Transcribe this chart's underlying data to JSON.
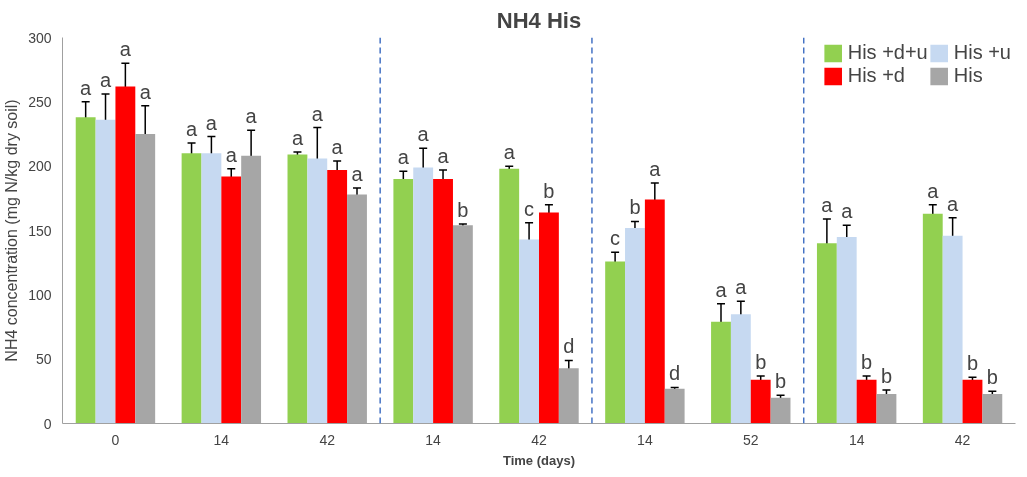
{
  "chart_data": {
    "type": "bar",
    "title": "NH4 His",
    "xlabel": "Time (days)",
    "ylabel": "NH4 concentration (mg N/kg dry soil)",
    "categories": [
      "0",
      "14",
      "42",
      "14",
      "42",
      "14",
      "52",
      "14",
      "42"
    ],
    "series": [
      {
        "name": "His +d+u",
        "color": "#92d050",
        "values": [
          238,
          210,
          209,
          190,
          198,
          126,
          79,
          140,
          163
        ],
        "errors": [
          12,
          8,
          2,
          6,
          2,
          7,
          14,
          19,
          7
        ],
        "value_labels": [
          "a",
          "a",
          "a",
          "a",
          "a",
          "c",
          "a",
          "a",
          "a"
        ]
      },
      {
        "name": "His +u",
        "color": "#c6d9f1",
        "values": [
          236,
          210,
          206,
          199,
          143,
          152,
          85,
          145,
          146
        ],
        "errors": [
          20,
          13,
          24,
          15,
          13,
          5,
          10,
          9,
          14
        ],
        "value_labels": [
          "a",
          "a",
          "a",
          "a",
          "c",
          "b",
          "a",
          "a",
          "a"
        ]
      },
      {
        "name": "His +d",
        "color": "#ff0000",
        "values": [
          262,
          192,
          197,
          190,
          164,
          174,
          34,
          34,
          34
        ],
        "errors": [
          18,
          6,
          7,
          7,
          6,
          13,
          3,
          3,
          2
        ],
        "value_labels": [
          "a",
          "a",
          "a",
          "a",
          "b",
          "a",
          "b",
          "b",
          "b"
        ]
      },
      {
        "name": "His",
        "color": "#a6a6a6",
        "values": [
          225,
          208,
          178,
          154,
          43,
          27,
          20,
          23,
          23
        ],
        "errors": [
          22,
          20,
          5,
          1,
          6,
          1,
          2,
          3,
          2
        ],
        "value_labels": [
          "a",
          "a",
          "a",
          "b",
          "d",
          "d",
          "b",
          "b",
          "b"
        ]
      }
    ],
    "ylim": [
      0,
      300
    ],
    "yticks": [
      0,
      50,
      100,
      150,
      200,
      250,
      300
    ],
    "grid": false,
    "legend": "top right"
  }
}
